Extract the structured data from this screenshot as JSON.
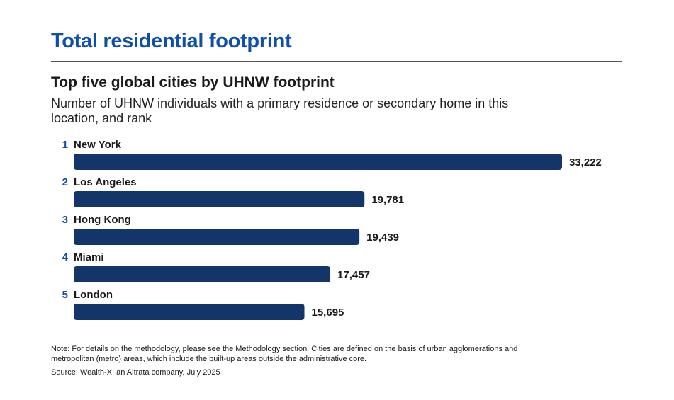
{
  "header": {
    "title": "Total residential footprint"
  },
  "chart_data": {
    "type": "bar",
    "orientation": "horizontal",
    "title": "Top five global cities by UHNW footprint",
    "subtitle": "Number of UHNW individuals with a primary residence or secondary home in this location, and rank",
    "categories": [
      "New York",
      "Los Angeles",
      "Hong Kong",
      "Miami",
      "London"
    ],
    "ranks": [
      "1",
      "2",
      "3",
      "4",
      "5"
    ],
    "values": [
      33222,
      19781,
      19439,
      17457,
      15695
    ],
    "value_labels": [
      "33,222",
      "19,781",
      "19,439",
      "17,457",
      "15,695"
    ],
    "xlim": [
      0,
      33222
    ],
    "grid": false,
    "legend": "none",
    "bar_color": "#14356a",
    "rank_color": "#0f4fa8"
  },
  "footer": {
    "note": "Note: For details on the methodology, please see the Methodology section. Cities are defined on the basis of urban agglomerations and metropolitan (metro) areas, which include the built-up areas outside the administrative core.",
    "source": "Source: Wealth-X, an Altrata company, July 2025"
  },
  "colors": {
    "title": "#0f4fa8",
    "bar": "#14356a",
    "rank": "#0f4fa8",
    "text": "#1a1a1a"
  }
}
